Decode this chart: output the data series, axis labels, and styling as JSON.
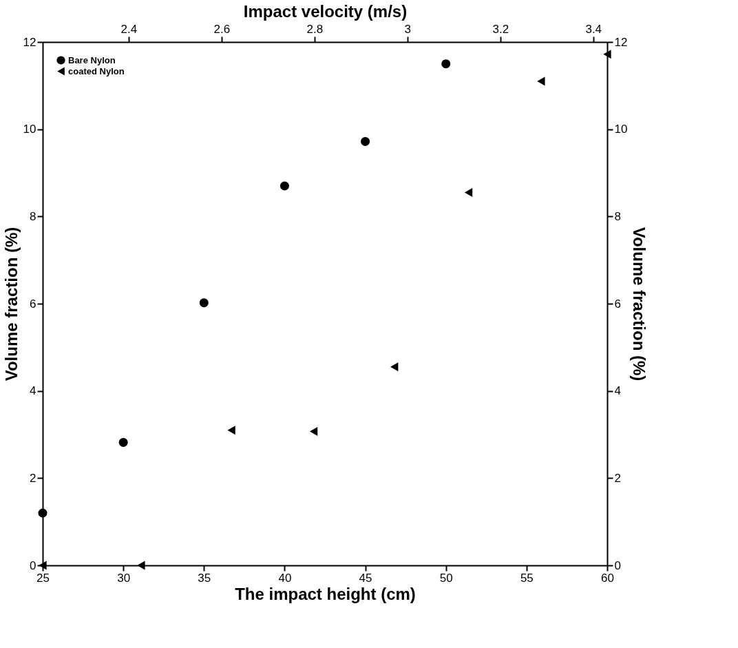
{
  "chart_data": {
    "type": "scatter",
    "xlabel": "The impact height (cm)",
    "ylabel": "Volume fraction (%)",
    "y2label": "Volume fraction (%)",
    "x2label": "Impact velocity (m/s)",
    "xlim": [
      25,
      60
    ],
    "xticks": [
      25,
      30,
      35,
      40,
      45,
      50,
      55,
      60
    ],
    "ylim": [
      0,
      12
    ],
    "yticks": [
      0,
      2,
      4,
      6,
      8,
      10,
      12
    ],
    "y2lim": [
      0,
      12
    ],
    "y2ticks": [
      0,
      2,
      4,
      6,
      8,
      10,
      12
    ],
    "x2lim": [
      2.215,
      3.43
    ],
    "x2ticks": [
      2.4,
      2.6,
      2.8,
      3,
      3.2,
      3.4
    ],
    "grid": false,
    "legend": "top left",
    "series": [
      {
        "name": "Bare Nylon",
        "color": "#000000",
        "marker": "circle",
        "x": [
          25,
          30,
          35,
          40,
          45,
          50
        ],
        "values": [
          1.2,
          2.82,
          6.02,
          8.7,
          9.72,
          11.5
        ]
      },
      {
        "name": "coated Nylon",
        "color": "#000000",
        "marker": "triangle",
        "x": [
          25,
          31.1,
          36.7,
          41.8,
          46.8,
          51.4,
          55.9,
          60
        ],
        "values": [
          0,
          0,
          3.1,
          3.07,
          4.55,
          8.55,
          11.1,
          11.72
        ]
      }
    ]
  }
}
